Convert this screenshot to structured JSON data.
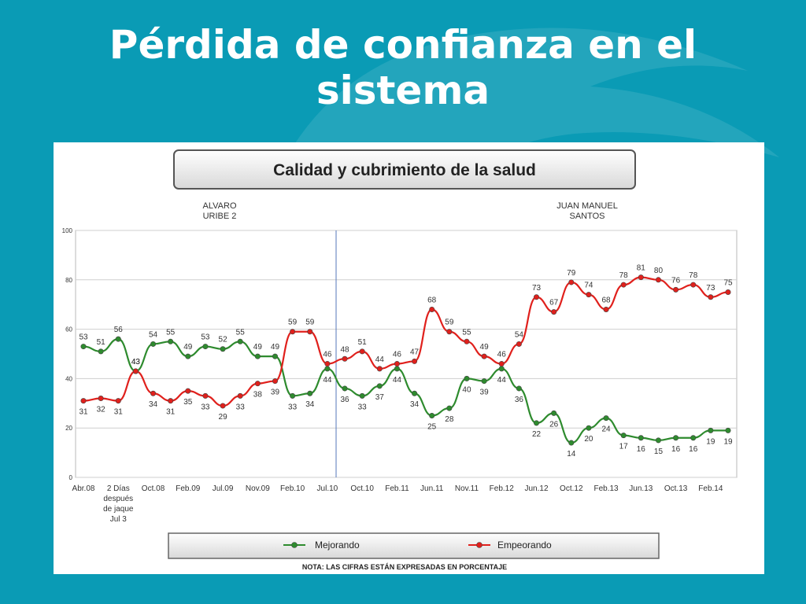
{
  "slide": {
    "title_line1": "Pérdida de confianza en el",
    "title_line2": "sistema"
  },
  "chart_data": {
    "type": "line",
    "title": "Calidad y cubrimiento de la salud",
    "period_labels": [
      "ALVARO\nURIBE 2",
      "JUAN MANUEL\nSANTOS"
    ],
    "ylim": [
      0,
      100
    ],
    "yticks": [
      0,
      20,
      40,
      60,
      80,
      100
    ],
    "grid": true,
    "x_tick_labels": [
      "Abr.08",
      "2 Días\ndespués\nde jaque\nJul 3",
      "Oct.08",
      "Feb.09",
      "Jul.09",
      "Nov.09",
      "Feb.10",
      "Jul.10",
      "Oct.10",
      "Feb.11",
      "Jun.11",
      "Nov.11",
      "Feb.12",
      "Jun.12",
      "Oct.12",
      "Feb.13",
      "Jun.13",
      "Oct.13",
      "Feb.14"
    ],
    "series": [
      {
        "name": "Mejorando",
        "color": "#2e8b2e",
        "values": [
          53,
          51,
          56,
          43,
          54,
          55,
          49,
          53,
          52,
          55,
          49,
          49,
          33,
          34,
          44,
          36,
          33,
          37,
          44,
          34,
          25,
          28,
          40,
          39,
          44,
          36,
          22,
          26,
          14,
          20,
          24,
          17,
          16,
          15,
          16,
          16,
          19,
          19
        ],
        "labels": [
          "53",
          "51",
          "56",
          "43",
          "54",
          "55",
          "49",
          "53",
          "52",
          "55",
          "49",
          "49",
          "33",
          "34",
          "44",
          "36",
          "33",
          "37",
          "44",
          "34",
          "25",
          "28",
          "40",
          "39",
          "44",
          "36",
          "22",
          "26",
          "14",
          "20",
          "24",
          "17",
          "16",
          "15",
          "16",
          "16",
          "19",
          "19"
        ]
      },
      {
        "name": "Empeorando",
        "color": "#e0201c",
        "values": [
          31,
          32,
          31,
          43,
          34,
          31,
          35,
          33,
          29,
          33,
          38,
          39,
          59,
          59,
          46,
          48,
          51,
          44,
          46,
          47,
          68,
          59,
          55,
          49,
          46,
          54,
          73,
          67,
          79,
          74,
          68,
          78,
          81,
          80,
          76,
          78,
          73,
          75
        ],
        "labels": [
          "31",
          "32",
          "31",
          "43",
          "34",
          "31",
          "35",
          "33",
          "29",
          "33",
          "38",
          "39",
          "59",
          "59",
          "46",
          "48",
          "51",
          "44",
          "46",
          "47",
          "68",
          "59",
          "55",
          "49",
          "46",
          "54",
          "73",
          "67",
          "79",
          "74",
          "68",
          "78",
          "81",
          "80",
          "76",
          "78",
          "73",
          "75"
        ]
      }
    ],
    "note": "NOTA: LAS CIFRAS ESTÁN EXPRESADAS EN PORCENTAJE"
  }
}
